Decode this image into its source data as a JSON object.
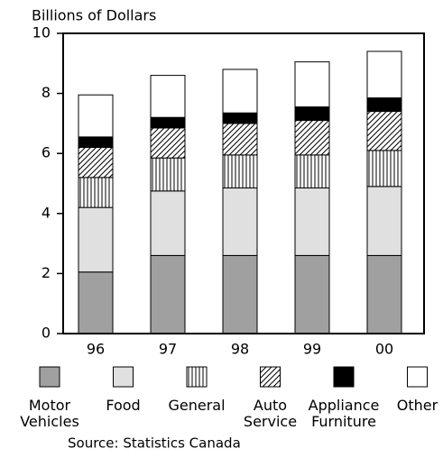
{
  "chart_data": {
    "type": "stacked-bar",
    "title": "Billions of Dollars",
    "source": "Source: Statistics Canada",
    "categories": [
      "96",
      "97",
      "98",
      "99",
      "00"
    ],
    "series": [
      {
        "name": "Motor Vehicles",
        "color": "#a0a0a0",
        "values": [
          2.05,
          2.6,
          2.6,
          2.6,
          2.6
        ]
      },
      {
        "name": "Food",
        "color": "#e0e0e0",
        "values": [
          2.15,
          2.15,
          2.25,
          2.25,
          2.3
        ]
      },
      {
        "name": "General",
        "color": "#ffffff",
        "pattern": "vertical",
        "values": [
          1.0,
          1.1,
          1.1,
          1.1,
          1.2
        ]
      },
      {
        "name": "Auto Service",
        "color": "#ffffff",
        "pattern": "diagonal",
        "values": [
          1.0,
          1.0,
          1.05,
          1.15,
          1.3
        ]
      },
      {
        "name": "Appliance Furniture",
        "color": "#000000",
        "values": [
          0.35,
          0.35,
          0.35,
          0.45,
          0.45
        ]
      },
      {
        "name": "Other",
        "color": "#ffffff",
        "values": [
          1.4,
          1.4,
          1.45,
          1.5,
          1.55
        ]
      }
    ],
    "ylim": [
      0,
      10
    ],
    "yticks": [
      0,
      2,
      4,
      6,
      8,
      10
    ]
  }
}
